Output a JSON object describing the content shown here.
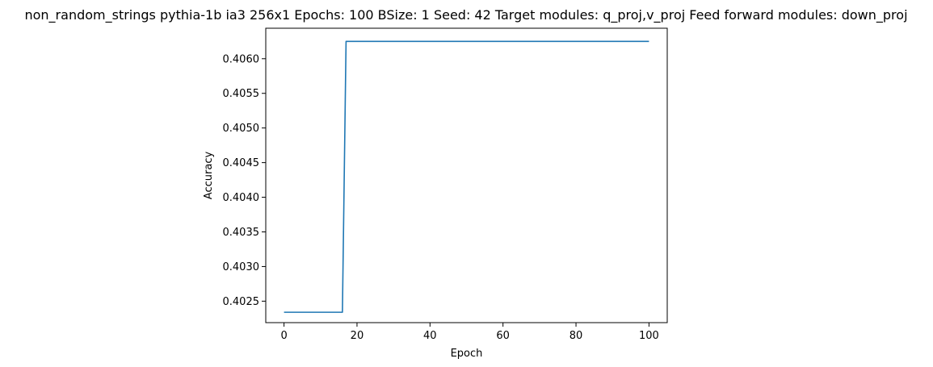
{
  "chart_data": {
    "type": "line",
    "title": "non_random_strings pythia-1b ia3 256x1 Epochs: 100 BSize: 1 Seed: 42 Target modules: q_proj,v_proj Feed forward modules: down_proj",
    "xlabel": "Epoch",
    "ylabel": "Accuracy",
    "xlim": [
      -5,
      105
    ],
    "ylim": [
      0.40219,
      0.40644
    ],
    "x_ticks": [
      0,
      20,
      40,
      60,
      80,
      100
    ],
    "x_tick_labels": [
      "0",
      "20",
      "40",
      "60",
      "80",
      "100"
    ],
    "y_ticks": [
      0.4025,
      0.403,
      0.4035,
      0.404,
      0.4045,
      0.405,
      0.4055,
      0.406
    ],
    "y_tick_labels": [
      "0.4025",
      "0.4030",
      "0.4035",
      "0.4040",
      "0.4045",
      "0.4050",
      "0.4055",
      "0.4060"
    ],
    "grid": false,
    "series": [
      {
        "color": "#1f77b4",
        "points": [
          [
            0,
            0.40234
          ],
          [
            16,
            0.40234
          ],
          [
            17,
            0.40625
          ],
          [
            100,
            0.40625
          ]
        ]
      }
    ]
  }
}
